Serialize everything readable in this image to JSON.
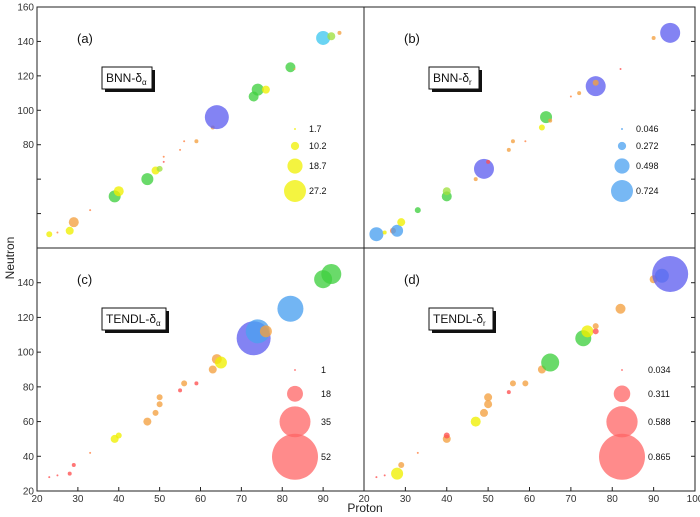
{
  "chart_data": {
    "type": "scatter",
    "xlabel": "Proton",
    "ylabel": "Neutron",
    "xlim": [
      20,
      100
    ],
    "ylim": [
      20,
      160
    ],
    "x_ticks": [
      "20",
      "30",
      "40",
      "50",
      "60",
      "70",
      "80",
      "90",
      "20",
      "30",
      "40",
      "50",
      "60",
      "70",
      "80",
      "90",
      "100"
    ],
    "y_ticks_upper": [
      "80",
      "100",
      "120",
      "140",
      "160"
    ],
    "y_ticks_lower": [
      "20",
      "40",
      "60",
      "80",
      "100",
      "120",
      "140"
    ],
    "y_ticks_upper_right": [
      "20",
      "40",
      "60",
      "80",
      "100",
      "120",
      "140",
      "160"
    ],
    "panels": [
      {
        "letter": "(a)",
        "label": "BNN-δα",
        "label_main": "BNN-δ",
        "label_sub": "α",
        "legend_color": "#f0f000",
        "legend": [
          {
            "text": "1.7",
            "value": 1.7
          },
          {
            "text": "10.2",
            "value": 10.2
          },
          {
            "text": "18.7",
            "value": 18.7
          },
          {
            "text": "27.2",
            "value": 27.2
          }
        ],
        "points": [
          {
            "x": 23,
            "y": 28,
            "v": 3,
            "c": "#f0f000"
          },
          {
            "x": 25,
            "y": 29,
            "v": 1,
            "c": "#ff8040"
          },
          {
            "x": 28,
            "y": 30,
            "v": 4,
            "c": "#f0f000"
          },
          {
            "x": 29,
            "y": 35,
            "v": 5,
            "c": "#f4a040"
          },
          {
            "x": 33,
            "y": 42,
            "v": 1,
            "c": "#ff8040"
          },
          {
            "x": 39,
            "y": 50,
            "v": 6,
            "c": "#40d040"
          },
          {
            "x": 40,
            "y": 53,
            "v": 5,
            "c": "#f0f000"
          },
          {
            "x": 47,
            "y": 60,
            "v": 6,
            "c": "#40d040"
          },
          {
            "x": 49,
            "y": 65,
            "v": 4,
            "c": "#f0f000"
          },
          {
            "x": 50,
            "y": 66,
            "v": 3,
            "c": "#a0e040"
          },
          {
            "x": 51,
            "y": 70,
            "v": 1,
            "c": "#ff5050"
          },
          {
            "x": 51,
            "y": 73,
            "v": 1,
            "c": "#ff8040"
          },
          {
            "x": 55,
            "y": 77,
            "v": 1,
            "c": "#ff8040"
          },
          {
            "x": 56,
            "y": 82,
            "v": 1,
            "c": "#ff8040"
          },
          {
            "x": 59,
            "y": 82,
            "v": 2,
            "c": "#f4a040"
          },
          {
            "x": 63,
            "y": 90,
            "v": 2,
            "c": "#f4a040"
          },
          {
            "x": 64,
            "y": 96,
            "v": 12,
            "c": "#6060f0"
          },
          {
            "x": 73,
            "y": 108,
            "v": 5,
            "c": "#40d040"
          },
          {
            "x": 74,
            "y": 112,
            "v": 6,
            "c": "#40d040"
          },
          {
            "x": 76,
            "y": 112,
            "v": 4,
            "c": "#f0f000"
          },
          {
            "x": 82,
            "y": 125,
            "v": 5,
            "c": "#40d040"
          },
          {
            "x": 83,
            "y": 124,
            "v": 1,
            "c": "#f4a040"
          },
          {
            "x": 90,
            "y": 142,
            "v": 7,
            "c": "#40c8f0"
          },
          {
            "x": 92,
            "y": 143,
            "v": 4,
            "c": "#a0e040"
          },
          {
            "x": 94,
            "y": 145,
            "v": 2,
            "c": "#f4a040"
          }
        ]
      },
      {
        "letter": "(b)",
        "label": "BNN-δr",
        "label_main": "BNN-δ",
        "label_sub": "r",
        "legend_color": "#4aa0f0",
        "legend": [
          {
            "text": "0.046",
            "value": 0.046
          },
          {
            "text": "0.272",
            "value": 0.272
          },
          {
            "text": "0.498",
            "value": 0.498
          },
          {
            "text": "0.724",
            "value": 0.724
          }
        ],
        "points": [
          {
            "x": 23,
            "y": 28,
            "v": 7,
            "c": "#4aa0f0"
          },
          {
            "x": 25,
            "y": 29,
            "v": 2,
            "c": "#f0f000"
          },
          {
            "x": 27,
            "y": 30,
            "v": 3,
            "c": "#ff8040"
          },
          {
            "x": 28,
            "y": 30,
            "v": 6,
            "c": "#4aa0f0"
          },
          {
            "x": 29,
            "y": 35,
            "v": 4,
            "c": "#f0f000"
          },
          {
            "x": 33,
            "y": 42,
            "v": 3,
            "c": "#40d040"
          },
          {
            "x": 40,
            "y": 50,
            "v": 5,
            "c": "#40d040"
          },
          {
            "x": 40,
            "y": 53,
            "v": 4,
            "c": "#a0e040"
          },
          {
            "x": 47,
            "y": 60,
            "v": 2,
            "c": "#f4a040"
          },
          {
            "x": 49,
            "y": 66,
            "v": 10,
            "c": "#6060f0"
          },
          {
            "x": 50,
            "y": 70,
            "v": 2,
            "c": "#ff5050"
          },
          {
            "x": 55,
            "y": 77,
            "v": 2,
            "c": "#f4a040"
          },
          {
            "x": 56,
            "y": 82,
            "v": 2,
            "c": "#f4a040"
          },
          {
            "x": 59,
            "y": 82,
            "v": 1,
            "c": "#ff8040"
          },
          {
            "x": 63,
            "y": 90,
            "v": 3,
            "c": "#f0f000"
          },
          {
            "x": 64,
            "y": 96,
            "v": 6,
            "c": "#40d040"
          },
          {
            "x": 65,
            "y": 94,
            "v": 2,
            "c": "#f4a040"
          },
          {
            "x": 70,
            "y": 108,
            "v": 1,
            "c": "#ff8040"
          },
          {
            "x": 72,
            "y": 110,
            "v": 2,
            "c": "#f4a040"
          },
          {
            "x": 76,
            "y": 114,
            "v": 10,
            "c": "#6060f0"
          },
          {
            "x": 76,
            "y": 116,
            "v": 3,
            "c": "#f4a040"
          },
          {
            "x": 82,
            "y": 124,
            "v": 1,
            "c": "#ff5050"
          },
          {
            "x": 90,
            "y": 142,
            "v": 2,
            "c": "#f4a040"
          },
          {
            "x": 94,
            "y": 145,
            "v": 10,
            "c": "#6060f0"
          }
        ]
      },
      {
        "letter": "(c)",
        "label": "TENDL-δα",
        "label_main": "TENDL-δ",
        "label_sub": "α",
        "legend_color": "#ff6464",
        "legend": [
          {
            "text": "1",
            "value": 1
          },
          {
            "text": "18",
            "value": 18
          },
          {
            "text": "35",
            "value": 35
          },
          {
            "text": "52",
            "value": 52
          }
        ],
        "points": [
          {
            "x": 23,
            "y": 28,
            "v": 1,
            "c": "#ff5050"
          },
          {
            "x": 25,
            "y": 29,
            "v": 1,
            "c": "#ff5050"
          },
          {
            "x": 28,
            "y": 30,
            "v": 2,
            "c": "#ff5050"
          },
          {
            "x": 29,
            "y": 35,
            "v": 2,
            "c": "#ff5050"
          },
          {
            "x": 33,
            "y": 42,
            "v": 1,
            "c": "#ff8040"
          },
          {
            "x": 39,
            "y": 50,
            "v": 4,
            "c": "#f0f000"
          },
          {
            "x": 40,
            "y": 52,
            "v": 3,
            "c": "#f0f000"
          },
          {
            "x": 47,
            "y": 60,
            "v": 4,
            "c": "#f4a040"
          },
          {
            "x": 49,
            "y": 65,
            "v": 3,
            "c": "#f4a040"
          },
          {
            "x": 50,
            "y": 70,
            "v": 3,
            "c": "#f4a040"
          },
          {
            "x": 50,
            "y": 74,
            "v": 3,
            "c": "#f4a040"
          },
          {
            "x": 55,
            "y": 78,
            "v": 2,
            "c": "#ff5050"
          },
          {
            "x": 56,
            "y": 82,
            "v": 3,
            "c": "#f4a040"
          },
          {
            "x": 59,
            "y": 82,
            "v": 2,
            "c": "#ff5050"
          },
          {
            "x": 63,
            "y": 90,
            "v": 4,
            "c": "#f4a040"
          },
          {
            "x": 64,
            "y": 96,
            "v": 5,
            "c": "#f4a040"
          },
          {
            "x": 65,
            "y": 94,
            "v": 6,
            "c": "#f0f000"
          },
          {
            "x": 73,
            "y": 108,
            "v": 17,
            "c": "#6060f0"
          },
          {
            "x": 74,
            "y": 112,
            "v": 12,
            "c": "#4aa0f0"
          },
          {
            "x": 76,
            "y": 112,
            "v": 6,
            "c": "#f4a040"
          },
          {
            "x": 82,
            "y": 125,
            "v": 13,
            "c": "#4aa0f0"
          },
          {
            "x": 90,
            "y": 142,
            "v": 9,
            "c": "#40d040"
          },
          {
            "x": 92,
            "y": 145,
            "v": 10,
            "c": "#40d040"
          }
        ]
      },
      {
        "letter": "(d)",
        "label": "TENDL-δr",
        "label_main": "TENDL-δ",
        "label_sub": "r",
        "legend_color": "#ff6464",
        "legend": [
          {
            "text": "0.034",
            "value": 0.034
          },
          {
            "text": "0.311",
            "value": 0.311
          },
          {
            "text": "0.588",
            "value": 0.588
          },
          {
            "text": "0.865",
            "value": 0.865
          }
        ],
        "points": [
          {
            "x": 23,
            "y": 28,
            "v": 1,
            "c": "#ff5050"
          },
          {
            "x": 25,
            "y": 29,
            "v": 1,
            "c": "#ff5050"
          },
          {
            "x": 28,
            "y": 30,
            "v": 6,
            "c": "#f0f000"
          },
          {
            "x": 29,
            "y": 35,
            "v": 3,
            "c": "#f4a040"
          },
          {
            "x": 33,
            "y": 42,
            "v": 1,
            "c": "#ff8040"
          },
          {
            "x": 40,
            "y": 50,
            "v": 4,
            "c": "#f4a040"
          },
          {
            "x": 40,
            "y": 52,
            "v": 3,
            "c": "#ff5050"
          },
          {
            "x": 47,
            "y": 60,
            "v": 5,
            "c": "#f0f000"
          },
          {
            "x": 49,
            "y": 65,
            "v": 4,
            "c": "#f4a040"
          },
          {
            "x": 50,
            "y": 70,
            "v": 4,
            "c": "#f4a040"
          },
          {
            "x": 50,
            "y": 74,
            "v": 4,
            "c": "#f4a040"
          },
          {
            "x": 55,
            "y": 77,
            "v": 2,
            "c": "#ff5050"
          },
          {
            "x": 56,
            "y": 82,
            "v": 3,
            "c": "#f4a040"
          },
          {
            "x": 59,
            "y": 82,
            "v": 3,
            "c": "#f4a040"
          },
          {
            "x": 63,
            "y": 90,
            "v": 4,
            "c": "#f4a040"
          },
          {
            "x": 65,
            "y": 94,
            "v": 9,
            "c": "#40d040"
          },
          {
            "x": 73,
            "y": 108,
            "v": 8,
            "c": "#40d040"
          },
          {
            "x": 74,
            "y": 112,
            "v": 6,
            "c": "#f0f000"
          },
          {
            "x": 76,
            "y": 112,
            "v": 3,
            "c": "#ff5050"
          },
          {
            "x": 76,
            "y": 115,
            "v": 3,
            "c": "#f4a040"
          },
          {
            "x": 82,
            "y": 125,
            "v": 5,
            "c": "#f4a040"
          },
          {
            "x": 90,
            "y": 142,
            "v": 4,
            "c": "#f4a040"
          },
          {
            "x": 92,
            "y": 144,
            "v": 7,
            "c": "#4aa0f0"
          },
          {
            "x": 94,
            "y": 145,
            "v": 18,
            "c": "#6060f0"
          }
        ]
      }
    ]
  }
}
